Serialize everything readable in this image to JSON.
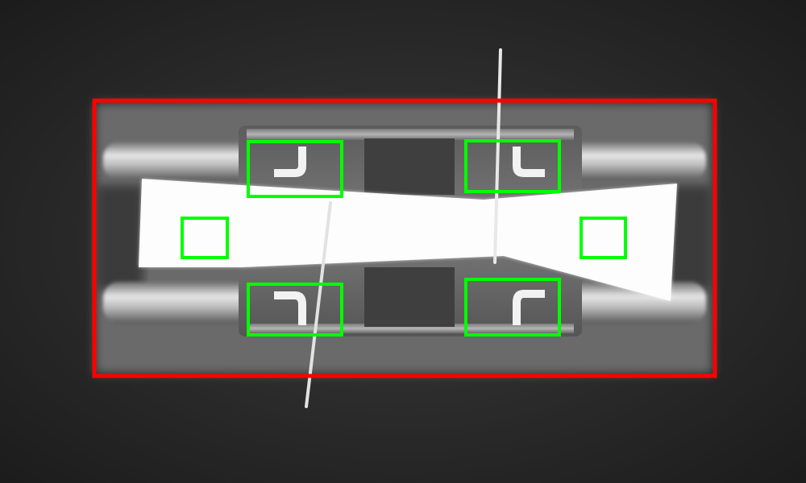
{
  "image": {
    "subject": "inspection-capture",
    "background_color": "#262626"
  },
  "overlay": {
    "outer_color": "#ff0000",
    "inner_color": "#00ff00",
    "outer_box_count": 1,
    "inner_box_count": 6
  }
}
